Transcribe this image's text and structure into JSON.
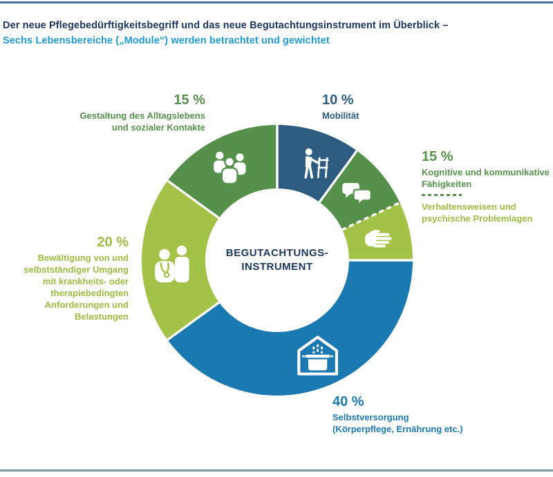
{
  "header": {
    "title_line1": "Der neue Pflegebedürftigkeitsbegriff und das neue Begutachtungsinstrument im Überblick –",
    "title_line2": "Sechs Lebensbereiche („Module“) werden betrachtet und gewichtet"
  },
  "colors": {
    "navy": "#1a365c",
    "sky": "#1d9ad7",
    "rule_top": "#4a6f9e",
    "rule_bottom": "#7e96a6",
    "green_text": "#55914b",
    "lightgreen_text": "#9cbc41",
    "blue_text": "#1b79b1",
    "darkblue_text": "#2d5c80"
  },
  "chart_data": {
    "type": "pie",
    "variant": "donut",
    "unit": "%",
    "direction": "clockwise",
    "start_angle_deg": 0,
    "center_label_lines": [
      "BEGUTACHTUNGS-",
      "INSTRUMENT"
    ],
    "weights_displayed": [
      {
        "percent": 10,
        "module": "Mobilität"
      },
      {
        "percent": 15,
        "module": "Kognitive und kommunikative Fähigkeiten / Verhaltensweisen und psychische Problemlagen"
      },
      {
        "percent": 40,
        "module": "Selbstversorgung (Körperpflege, Ernährung etc.)"
      },
      {
        "percent": 20,
        "module": "Bewältigung von und selbstständiger Umgang mit krankheits- oder therapiebedingten Anforderungen und Belastungen"
      },
      {
        "percent": 15,
        "module": "Gestaltung des Alltagslebens und sozialer Kontakte"
      }
    ],
    "slices": [
      {
        "value": 10,
        "color": "#2d5c80",
        "icon": "walker-icon",
        "label": "Mobilität",
        "divider_after": "solid"
      },
      {
        "value": 8,
        "color": "#55914b",
        "icon": "speech-bubbles-icon",
        "label": "Kognitive und kommunikative Fähigkeiten",
        "divider_after": "dashed"
      },
      {
        "value": 7,
        "color": "#a2c348",
        "icon": "hand-icon",
        "label": "Verhaltensweisen und psychische Problemlagen",
        "divider_after": "solid"
      },
      {
        "value": 40,
        "color": "#1b79b1",
        "icon": "house-cooking-pot-icon",
        "label": "Selbstversorgung (Körperpflege, Ernährung etc.)",
        "divider_after": "solid"
      },
      {
        "value": 20,
        "color": "#a2c348",
        "icon": "doctor-patient-icon",
        "label": "Bewältigung von und selbstständiger Umgang mit krankheits- oder therapiebedingten Anforderungen und Belastungen",
        "divider_after": "solid"
      },
      {
        "value": 15,
        "color": "#55914b",
        "icon": "people-group-icon",
        "label": "Gestaltung des Alltagslebens und sozialer Kontakte",
        "divider_after": "solid"
      }
    ]
  },
  "labels": {
    "gestaltung": {
      "percent": "15 %",
      "lines": [
        "Gestaltung des Alltagslebens",
        "und sozialer Kontakte"
      ]
    },
    "mobilitaet": {
      "percent": "10 %",
      "lines": [
        "Mobilität"
      ]
    },
    "kognitive": {
      "percent": "15 %",
      "lines_top": [
        "Kognitive und kommunikative",
        "Fähigkeiten"
      ],
      "lines_bottom": [
        "Verhaltensweisen und",
        "psychische Problemlagen"
      ]
    },
    "bewaeltigung": {
      "percent": "20 %",
      "lines": [
        "Bewältigung von und",
        "selbstständiger Umgang",
        "mit krankheits- oder",
        "therapiebedingten",
        "Anforderungen und",
        "Belastungen"
      ]
    },
    "selbstversorgung": {
      "percent": "40 %",
      "lines": [
        "Selbstversorgung",
        "(Körperpflege, Ernährung etc.)"
      ]
    }
  }
}
